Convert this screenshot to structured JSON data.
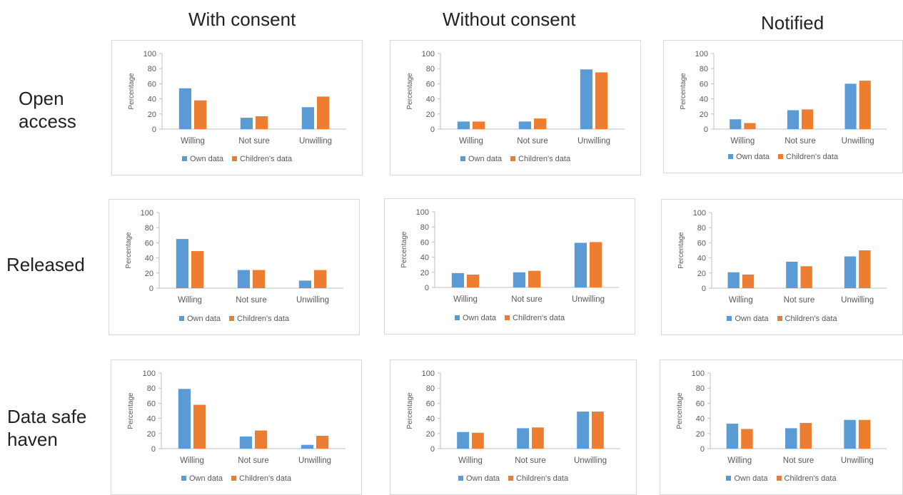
{
  "column_headers": [
    "With consent",
    "Without consent",
    "Notified"
  ],
  "row_labels": [
    "Open\naccess",
    "Released",
    "Data safe\nhaven"
  ],
  "colors": {
    "own": "#5b9bd5",
    "children": "#ed7d31",
    "axis": "#bfbfbf",
    "text": "#595959"
  },
  "legend": [
    "Own data",
    "Children's data"
  ],
  "chart_data": [
    {
      "type": "bar",
      "row": "Open access",
      "column": "With consent",
      "categories": [
        "Willing",
        "Not sure",
        "Unwilling"
      ],
      "ylabel": "Percentage",
      "ylim": [
        0,
        100
      ],
      "yticks": [
        0,
        20,
        40,
        60,
        80,
        100
      ],
      "series": [
        {
          "name": "Own data",
          "values": [
            54,
            15,
            29
          ]
        },
        {
          "name": "Children's data",
          "values": [
            38,
            17,
            43
          ]
        }
      ]
    },
    {
      "type": "bar",
      "row": "Open access",
      "column": "Without consent",
      "categories": [
        "Willing",
        "Not sure",
        "Unwilling"
      ],
      "ylabel": "Percentage",
      "ylim": [
        0,
        100
      ],
      "yticks": [
        0,
        20,
        40,
        60,
        80,
        100
      ],
      "series": [
        {
          "name": "Own data",
          "values": [
            10,
            10,
            79
          ]
        },
        {
          "name": "Children's data",
          "values": [
            10,
            14,
            75
          ]
        }
      ]
    },
    {
      "type": "bar",
      "row": "Open access",
      "column": "Notified",
      "categories": [
        "Willing",
        "Not sure",
        "Unwilling"
      ],
      "ylabel": "Percentage",
      "ylim": [
        0,
        100
      ],
      "yticks": [
        0,
        20,
        40,
        60,
        80,
        100
      ],
      "series": [
        {
          "name": "Own data",
          "values": [
            13,
            25,
            60
          ]
        },
        {
          "name": "Children's data",
          "values": [
            8,
            26,
            64
          ]
        }
      ]
    },
    {
      "type": "bar",
      "row": "Released",
      "column": "With consent",
      "categories": [
        "Willing",
        "Not sure",
        "Unwilling"
      ],
      "ylabel": "Percentage",
      "ylim": [
        0,
        100
      ],
      "yticks": [
        0,
        20,
        40,
        60,
        80,
        100
      ],
      "series": [
        {
          "name": "Own data",
          "values": [
            65,
            24,
            10
          ]
        },
        {
          "name": "Children's data",
          "values": [
            49,
            24,
            24
          ]
        }
      ]
    },
    {
      "type": "bar",
      "row": "Released",
      "column": "Without consent",
      "categories": [
        "Willing",
        "Not sure",
        "Unwilling"
      ],
      "ylabel": "Percentage",
      "ylim": [
        0,
        100
      ],
      "yticks": [
        0,
        20,
        40,
        60,
        80,
        100
      ],
      "series": [
        {
          "name": "Own data",
          "values": [
            19,
            20,
            59
          ]
        },
        {
          "name": "Children's data",
          "values": [
            17,
            22,
            60
          ]
        }
      ]
    },
    {
      "type": "bar",
      "row": "Released",
      "column": "Notified",
      "categories": [
        "Willing",
        "Not sure",
        "Unwilling"
      ],
      "ylabel": "Percentage",
      "ylim": [
        0,
        100
      ],
      "yticks": [
        0,
        20,
        40,
        60,
        80,
        100
      ],
      "series": [
        {
          "name": "Own data",
          "values": [
            21,
            35,
            42
          ]
        },
        {
          "name": "Children's data",
          "values": [
            18,
            29,
            50
          ]
        }
      ]
    },
    {
      "type": "bar",
      "row": "Data safe haven",
      "column": "With consent",
      "categories": [
        "Willing",
        "Not sure",
        "Unwilling"
      ],
      "ylabel": "Percentage",
      "ylim": [
        0,
        100
      ],
      "yticks": [
        0,
        20,
        40,
        60,
        80,
        100
      ],
      "series": [
        {
          "name": "Own data",
          "values": [
            79,
            16,
            5
          ]
        },
        {
          "name": "Children's data",
          "values": [
            58,
            24,
            17
          ]
        }
      ]
    },
    {
      "type": "bar",
      "row": "Data safe haven",
      "column": "Without consent",
      "categories": [
        "Willing",
        "Not sure",
        "Unwilling"
      ],
      "ylabel": "Percentage",
      "ylim": [
        0,
        100
      ],
      "yticks": [
        0,
        20,
        40,
        60,
        80,
        100
      ],
      "series": [
        {
          "name": "Own data",
          "values": [
            22,
            27,
            49
          ]
        },
        {
          "name": "Children's data",
          "values": [
            21,
            28,
            49
          ]
        }
      ]
    },
    {
      "type": "bar",
      "row": "Data safe haven",
      "column": "Notified",
      "categories": [
        "Willing",
        "Not sure",
        "Unwilling"
      ],
      "ylabel": "Percentage",
      "ylim": [
        0,
        100
      ],
      "yticks": [
        0,
        20,
        40,
        60,
        80,
        100
      ],
      "series": [
        {
          "name": "Own data",
          "values": [
            33,
            27,
            38
          ]
        },
        {
          "name": "Children's data",
          "values": [
            26,
            34,
            38
          ]
        }
      ]
    }
  ]
}
